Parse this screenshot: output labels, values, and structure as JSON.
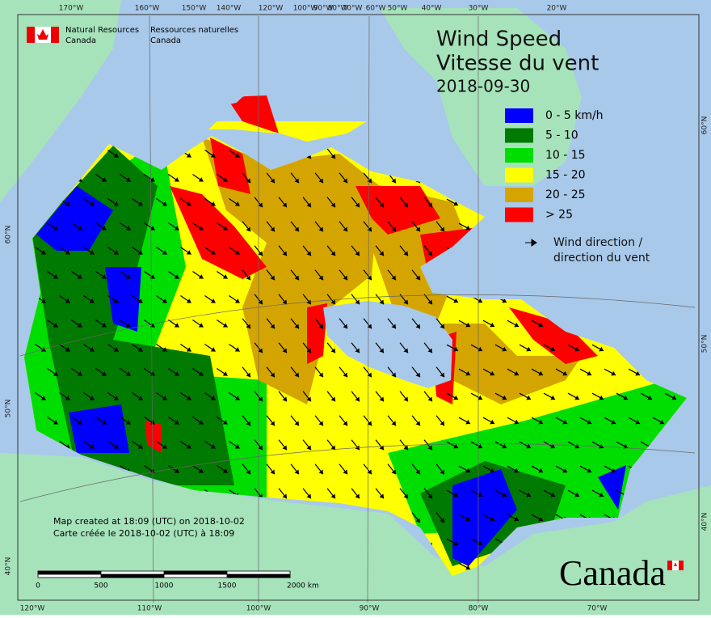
{
  "header": {
    "org_en": [
      "Natural Resources",
      "Canada"
    ],
    "org_fr": [
      "Ressources naturelles",
      "Canada"
    ]
  },
  "title": {
    "en": "Wind Speed",
    "fr": "Vitesse du vent",
    "date": "2018-09-30"
  },
  "legend": {
    "items": [
      {
        "label": "0 - 5 km/h",
        "color": "#0000ff"
      },
      {
        "label": "5 - 10",
        "color": "#007a00"
      },
      {
        "label": "10 - 15",
        "color": "#00dd00"
      },
      {
        "label": "15 - 20",
        "color": "#ffff00"
      },
      {
        "label": "20 - 25",
        "color": "#d4a500"
      },
      {
        "label": "> 25",
        "color": "#ff0000"
      }
    ],
    "direction": [
      "Wind direction /",
      "direction du vent"
    ]
  },
  "notes": [
    "Map created at 18:09 (UTC) on 2018-10-02",
    "Carte créée le 2018-10-02 (UTC) à 18:09"
  ],
  "scale_bar": [
    "0",
    "500",
    "1000",
    "1500",
    "2000 km"
  ],
  "graticule": {
    "top": [
      "170°W",
      "160°W",
      "150°W",
      "140°W",
      "120°W",
      "100°W",
      "90°W",
      "80°W",
      "70°W",
      "60°W",
      "50°W",
      "40°W",
      "30°W",
      "20°W"
    ],
    "bottom": [
      "120°W",
      "110°W",
      "100°W",
      "90°W",
      "80°W",
      "70°W"
    ],
    "left": [
      "60°N",
      "50°N",
      "40°N"
    ],
    "right": [
      "60°N",
      "50°N",
      "40°N"
    ]
  },
  "wordmark": "Canada"
}
